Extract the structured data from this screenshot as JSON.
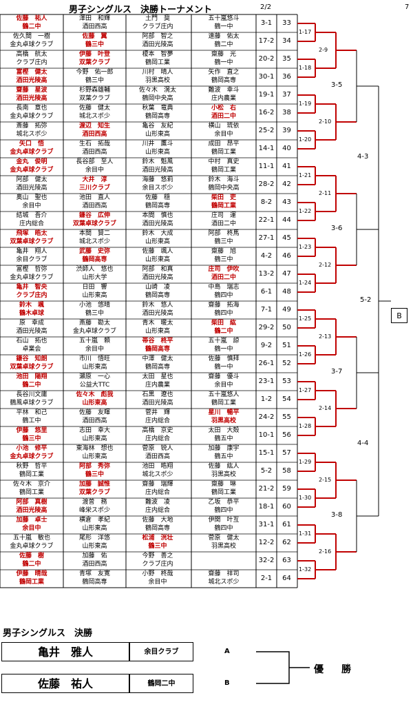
{
  "header": {
    "title": "男子シングルス　決勝トーナメント",
    "page": "2/2",
    "number": "7"
  },
  "matches": [
    {
      "left": {
        "name": "佐藤　祐人",
        "club": "鶴二中"
      },
      "left2": {
        "name": "澤田　和輝",
        "club": "酒田西高"
      },
      "right": {
        "name": "土門　奨",
        "club": "クラブ庄内"
      },
      "right2": {
        "name": "五十嵐悠斗",
        "club": "鶴一中"
      },
      "score": "3-1",
      "num": "33",
      "win": "l1"
    },
    {
      "left": {
        "name": "佐久間　一樹",
        "club": "金丸卓球クラブ"
      },
      "left2": {
        "name": "佐藤　翼",
        "club": "鶴三中"
      },
      "right": {
        "name": "阿部　智之",
        "club": "酒田光陵高"
      },
      "right2": {
        "name": "遠藤　佑太",
        "club": "鶴二中"
      },
      "score": "17-2",
      "num": "34",
      "win": "l2"
    },
    {
      "left": {
        "name": "高橋　航太",
        "club": "クラブ庄内"
      },
      "left2": {
        "name": "伊藤　叶登",
        "club": "双葉クラブ"
      },
      "right": {
        "name": "榎本　智夢",
        "club": "鶴岡工業"
      },
      "right2": {
        "name": "齋藤　光",
        "club": "鶴一中"
      },
      "score": "20-2",
      "num": "35",
      "win": "l2"
    },
    {
      "left": {
        "name": "富樫　健太",
        "club": "酒田光陵高"
      },
      "left2": {
        "name": "今野　佑一郎",
        "club": "鶴三中"
      },
      "right": {
        "name": "川村　晴人",
        "club": "羽黒高校"
      },
      "right2": {
        "name": "矢作　直之",
        "club": "鶴岡高専"
      },
      "score": "30-1",
      "num": "36",
      "win": "l1"
    },
    {
      "left": {
        "name": "齋藤　星波",
        "club": "酒田光陵高"
      },
      "left2": {
        "name": "杉野森雄輔",
        "club": "双葉クラブ"
      },
      "right": {
        "name": "佐々木　滉太",
        "club": "鶴岡中央高"
      },
      "right2": {
        "name": "難波　幸斗",
        "club": "庄内農業"
      },
      "score": "19-1",
      "num": "37",
      "win": "l1"
    },
    {
      "left": {
        "name": "長南　章也",
        "club": "金丸卓球クラブ"
      },
      "left2": {
        "name": "佐藤　健太",
        "club": "城北スポ少"
      },
      "right": {
        "name": "秋葉　竜典",
        "club": "鶴岡高専"
      },
      "right2": {
        "name": "小松　右",
        "club": "酒田二中"
      },
      "score": "16-2",
      "num": "38",
      "win": "r2"
    },
    {
      "left": {
        "name": "斎藤　拓弥",
        "club": "城北スポ少"
      },
      "left2": {
        "name": "渡辺　知生",
        "club": "酒田西高"
      },
      "right": {
        "name": "亀谷　友紀",
        "club": "山形東高"
      },
      "right2": {
        "name": "横山　琉依",
        "club": "余目中"
      },
      "score": "25-2",
      "num": "39",
      "win": "l2"
    },
    {
      "left": {
        "name": "矢口　悟",
        "club": "金丸卓球クラブ"
      },
      "left2": {
        "name": "生石　拓哉",
        "club": "酒田西高"
      },
      "right": {
        "name": "川井　鷹斗",
        "club": "山形東高"
      },
      "right2": {
        "name": "成田　昂平",
        "club": "鶴岡工業"
      },
      "score": "14-1",
      "num": "40",
      "win": "l1"
    },
    {
      "left": {
        "name": "金丸　俊明",
        "club": "金丸卓球クラブ"
      },
      "left2": {
        "name": "長谷部　至人",
        "club": "余目中"
      },
      "right": {
        "name": "鈴木　魁風",
        "club": "酒田光陵高"
      },
      "right2": {
        "name": "中村　真史",
        "club": "鶴岡工業"
      },
      "score": "11-1",
      "num": "41",
      "win": "l1"
    },
    {
      "left": {
        "name": "阿部　健太",
        "club": "酒田光陵高"
      },
      "left2": {
        "name": "大井　淳",
        "club": "三川クラブ"
      },
      "right": {
        "name": "海藤　悠莉",
        "club": "余目スポ少"
      },
      "right2": {
        "name": "鈴木　海斗",
        "club": "鶴岡中央高"
      },
      "score": "28-2",
      "num": "42",
      "win": "l2"
    },
    {
      "left": {
        "name": "奥山　聖也",
        "club": "余目中"
      },
      "left2": {
        "name": "池田　直人",
        "club": "酒田西高"
      },
      "right": {
        "name": "佐藤　穏",
        "club": "鶴岡高専"
      },
      "right2": {
        "name": "柴田　吏",
        "club": "鶴岡工業"
      },
      "score": "8-2",
      "num": "43",
      "win": "r2"
    },
    {
      "left": {
        "name": "結城　吾介",
        "club": "庄内総合"
      },
      "left2": {
        "name": "鎌谷　広伸",
        "club": "双葉卓球クラブ"
      },
      "right": {
        "name": "本間　慎也",
        "club": "酒田光陵高"
      },
      "right2": {
        "name": "庄司　運",
        "club": "酒田二中"
      },
      "score": "22-1",
      "num": "44",
      "win": "l2"
    },
    {
      "left": {
        "name": "飛塚　皓太",
        "club": "双葉卓球クラブ"
      },
      "left2": {
        "name": "本間　賢二",
        "club": "城北スポ少"
      },
      "right": {
        "name": "鈴木　大成",
        "club": "山形東高"
      },
      "right2": {
        "name": "阿部　柊馬",
        "club": "鶴三中"
      },
      "score": "27-1",
      "num": "45",
      "win": "l1"
    },
    {
      "left": {
        "name": "亀井　翔人",
        "club": "余目クラブ"
      },
      "left2": {
        "name": "武藤　史弥",
        "club": "鶴岡高専"
      },
      "right": {
        "name": "佐藤　颯人",
        "club": "山形東高"
      },
      "right2": {
        "name": "齋藤　旭",
        "club": "鶴三中"
      },
      "score": "4-2",
      "num": "46",
      "win": "l2"
    },
    {
      "left": {
        "name": "冨樫　哲弥",
        "club": "金丸卓球クラブ"
      },
      "left2": {
        "name": "渋師人　悠也",
        "club": "山形大学"
      },
      "right": {
        "name": "阿部　和真",
        "club": "酒田光陵高"
      },
      "right2": {
        "name": "庄司　伊吹",
        "club": "酒田二中"
      },
      "score": "13-2",
      "num": "47",
      "win": "r2"
    },
    {
      "left": {
        "name": "亀井　智央",
        "club": "クラブ庄内"
      },
      "left2": {
        "name": "日田　響",
        "club": "山形東高"
      },
      "right": {
        "name": "山崎　凌",
        "club": "鶴岡高専"
      },
      "right2": {
        "name": "中島　瑞志",
        "club": "鶴四中"
      },
      "score": "6-1",
      "num": "48",
      "win": "l1"
    },
    {
      "left": {
        "name": "鈴木　颯",
        "club": "鶴木卓球"
      },
      "left2": {
        "name": "小池　悠晴",
        "club": "鶴三中"
      },
      "right": {
        "name": "鈴木　悠人",
        "club": "酒田光陵高"
      },
      "right2": {
        "name": "齋藤　拓海",
        "club": "鶴四中"
      },
      "score": "7-1",
      "num": "49",
      "win": "l1"
    },
    {
      "left": {
        "name": "原　幸成",
        "club": "酒田光陵高"
      },
      "left2": {
        "name": "斎藤　勘太",
        "club": "金丸卓球クラブ"
      },
      "right": {
        "name": "青木　暖太",
        "club": "山形東高"
      },
      "right2": {
        "name": "柴田　紘",
        "club": "鶴二中"
      },
      "score": "29-2",
      "num": "50",
      "win": "r2"
    },
    {
      "left": {
        "name": "石山　拓也",
        "club": "卓業会"
      },
      "left2": {
        "name": "五十嵐　頼",
        "club": "余目中"
      },
      "right": {
        "name": "帯谷　柊平",
        "club": "鶴岡高専"
      },
      "right2": {
        "name": "五十嵐　諒",
        "club": "鶴一中"
      },
      "score": "9-2",
      "num": "51",
      "win": "r1"
    },
    {
      "left": {
        "name": "鎌谷　知朗",
        "club": "双葉卓球クラブ"
      },
      "left2": {
        "name": "市川　悟旺",
        "club": "山形東高"
      },
      "right": {
        "name": "中澤　健太",
        "club": "鶴岡高専"
      },
      "right2": {
        "name": "佐藤　慎拜",
        "club": "鶴一中"
      },
      "score": "26-1",
      "num": "52",
      "win": "l1"
    },
    {
      "left": {
        "name": "池田　陽翔",
        "club": "鶴二中"
      },
      "left2": {
        "name": "瀬原　一心",
        "club": "公益大TTC"
      },
      "right": {
        "name": "太田　星也",
        "club": "庄内農業"
      },
      "right2": {
        "name": "齋藤　優斗",
        "club": "余目中"
      },
      "score": "23-1",
      "num": "53",
      "win": "l1"
    },
    {
      "left": {
        "name": "長谷川文庸",
        "club": "鶴風卓球クラブ"
      },
      "left2": {
        "name": "佐々木　彪我",
        "club": "山形東高"
      },
      "right": {
        "name": "石黒　遼也",
        "club": "酒田光陵高"
      },
      "right2": {
        "name": "五十嵐悠人",
        "club": "鶴岡工業"
      },
      "score": "1-2",
      "num": "54",
      "win": "l2"
    },
    {
      "left": {
        "name": "平林　和己",
        "club": "鶴工中"
      },
      "left2": {
        "name": "佐藤　友暉",
        "club": "酒田西高"
      },
      "right": {
        "name": "菅井　輝",
        "club": "庄内総合"
      },
      "right2": {
        "name": "星川　暢平",
        "club": "羽黒高校"
      },
      "score": "24-2",
      "num": "55",
      "win": "r2"
    },
    {
      "left": {
        "name": "伊藤　悠里",
        "club": "鶴三中"
      },
      "left2": {
        "name": "志田　幸大",
        "club": "山形東高"
      },
      "right": {
        "name": "高橋　京史",
        "club": "庄内総合"
      },
      "right2": {
        "name": "太田　大殻",
        "club": "鶴五中"
      },
      "score": "10-1",
      "num": "56",
      "win": "l1"
    },
    {
      "left": {
        "name": "小池　修平",
        "club": "金丸卓球クラブ"
      },
      "left2": {
        "name": "東海林　想也",
        "club": "山形東高"
      },
      "right": {
        "name": "菅原　锐人",
        "club": "酒田西高"
      },
      "right2": {
        "name": "加藤　康宇",
        "club": "鶴五中"
      },
      "score": "15-1",
      "num": "57",
      "win": "l1"
    },
    {
      "left": {
        "name": "秋野　哲平",
        "club": "鶴岡工業"
      },
      "left2": {
        "name": "阿部　秀弥",
        "club": "鶴三中"
      },
      "right": {
        "name": "池田　晧翔",
        "club": "城北スポ少"
      },
      "right2": {
        "name": "佐藤　紘人",
        "club": "羽黒高校"
      },
      "score": "5-2",
      "num": "58",
      "win": "l2"
    },
    {
      "left": {
        "name": "佐々木　京介",
        "club": "鶴岡工業"
      },
      "left2": {
        "name": "加藤　誠惟",
        "club": "双葉クラブ"
      },
      "right": {
        "name": "齋藤　瑞輝",
        "club": "庄内総合"
      },
      "right2": {
        "name": "齋藤　琳",
        "club": "鶴岡工業"
      },
      "score": "21-2",
      "num": "59",
      "win": "l2"
    },
    {
      "left": {
        "name": "阿部　真樹",
        "club": "酒田光陵高"
      },
      "left2": {
        "name": "渡曽　務",
        "club": "峰栄スポ少"
      },
      "right": {
        "name": "難波　凌",
        "club": "庄内総合"
      },
      "right2": {
        "name": "乙坂　恭平",
        "club": "鶴四中"
      },
      "score": "18-1",
      "num": "60",
      "win": "l1"
    },
    {
      "left": {
        "name": "加藤　卓士",
        "club": "余目中"
      },
      "left2": {
        "name": "横倉　孝紀",
        "club": "山形東高"
      },
      "right": {
        "name": "佐藤　大地",
        "club": "鶴岡高専"
      },
      "right2": {
        "name": "伊関　叶互",
        "club": "鶴四中"
      },
      "score": "31-1",
      "num": "61",
      "win": "l1"
    },
    {
      "left": {
        "name": "五十嵐　敏也",
        "club": "金丸卓球クラブ"
      },
      "left2": {
        "name": "尾形　洋悠",
        "club": "山形東高"
      },
      "right": {
        "name": "松浦　洸壮",
        "club": "鶴三中"
      },
      "right2": {
        "name": "菅原　健太",
        "club": "羽黒高校"
      },
      "score": "12-2",
      "num": "62",
      "win": "r1"
    },
    {
      "left": {
        "name": "佐藤　樹",
        "club": "鶴二中"
      },
      "left2": {
        "name": "加藤　佑",
        "club": "酒田西高"
      },
      "right": {
        "name": "今野　善之",
        "club": "クラブ庄内"
      },
      "right2": {
        "name": "",
        "club": ""
      },
      "score": "32-2",
      "num": "63",
      "win": "l1"
    },
    {
      "left": {
        "name": "伊藤　晴哉",
        "club": "鶴岡工業"
      },
      "left2": {
        "name": "青塚　友寛",
        "club": "鶴岡高専"
      },
      "right": {
        "name": "小野　柊哉",
        "club": "余目中"
      },
      "right2": {
        "name": "齋藤　祥司",
        "club": "城北スポ少"
      },
      "score": "2-1",
      "num": "64",
      "win": "l1"
    }
  ],
  "rounds": {
    "r1": [
      "1-17",
      "1-18",
      "1-19",
      "1-20",
      "1-21",
      "1-22",
      "1-23",
      "1-24",
      "1-25",
      "1-26",
      "1-27",
      "1-28",
      "1-29",
      "1-30",
      "1-31",
      "1-32"
    ],
    "r2": [
      "2-9",
      "2-10",
      "2-11",
      "2-12",
      "2-13",
      "2-14",
      "2-15",
      "2-16"
    ],
    "r3": [
      "3-5",
      "3-6",
      "3-7",
      "3-8"
    ],
    "r4": [
      "4-3",
      "4-4"
    ],
    "r5": "5-2",
    "slot": "B"
  },
  "final": {
    "title": "男子シングルス　決勝",
    "a": {
      "name": "亀井　雅人",
      "club": "余目クラブ",
      "slot": "A"
    },
    "b": {
      "name": "佐藤　祐人",
      "club": "鶴岡二中",
      "slot": "B"
    },
    "champion_label": "優　勝"
  },
  "colors": {
    "win": "#c00000",
    "line": "#c00000",
    "border": "#000000"
  }
}
